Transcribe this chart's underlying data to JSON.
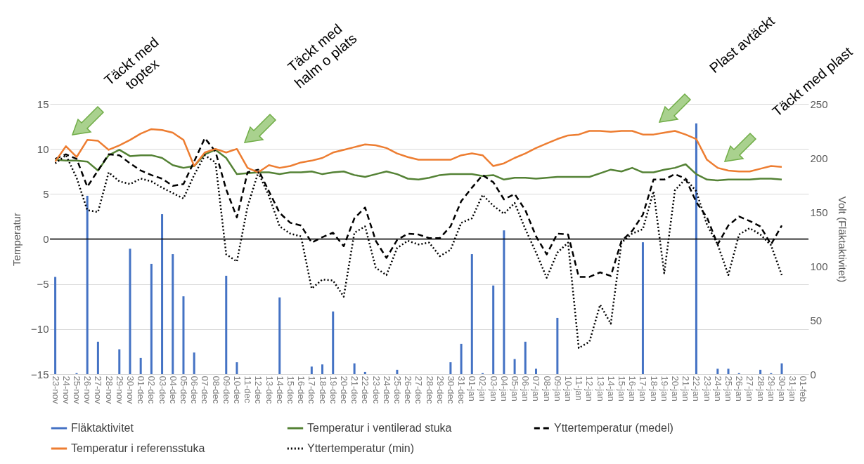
{
  "chart_data": {
    "type": "line",
    "categories": [
      "23-nov",
      "24-nov",
      "25-nov",
      "26-nov",
      "27-nov",
      "28-nov",
      "29-nov",
      "30-nov",
      "01-dec",
      "02-dec",
      "03-dec",
      "04-dec",
      "05-dec",
      "06-dec",
      "07-dec",
      "08-dec",
      "09-dec",
      "10-dec",
      "11-dec",
      "12-dec",
      "13-dec",
      "14-dec",
      "15-dec",
      "16-dec",
      "17-dec",
      "18-dec",
      "19-dec",
      "20-dec",
      "21-dec",
      "22-dec",
      "23-dec",
      "24-dec",
      "25-dec",
      "26-dec",
      "27-dec",
      "28-dec",
      "29-dec",
      "30-dec",
      "31-dec",
      "01-jan",
      "02-jan",
      "03-jan",
      "04-jan",
      "05-jan",
      "06-jan",
      "07-jan",
      "08-jan",
      "09-jan",
      "10-jan",
      "11-jan",
      "12-jan",
      "13-jan",
      "14-jan",
      "15-jan",
      "16-jan",
      "17-jan",
      "18-jan",
      "19-jan",
      "20-jan",
      "21-jan",
      "22-jan",
      "23-jan",
      "24-jan",
      "25-jan",
      "26-jan",
      "27-jan",
      "28-jan",
      "29-jan",
      "30-jan",
      "31-jan",
      "01-feb"
    ],
    "ylabel": "Temperatur",
    "y2label": "Volt (Fläktaktivitet)",
    "ylim": [
      -15,
      15
    ],
    "yticks": [
      -15,
      -10,
      -5,
      0,
      5,
      10,
      15
    ],
    "y2lim": [
      0,
      250
    ],
    "y2ticks": [
      0,
      50,
      100,
      150,
      200,
      250
    ],
    "grid": "y",
    "legend": "bottom",
    "ref_lines": [
      {
        "axis": "y",
        "value": 0,
        "color": "#000000"
      }
    ],
    "annotations": [
      "Täckt med\ntoptex",
      "Täckt med\nhalm o plats",
      "Plast avtäckt",
      "Täckt med plast"
    ],
    "series": [
      {
        "name": "Fläktaktivitet",
        "type": "bar",
        "axis": "y2",
        "color": "#4472c4",
        "values": [
          90,
          null,
          1,
          165,
          30,
          null,
          23,
          116,
          15,
          102,
          148,
          111,
          72,
          20,
          null,
          null,
          91,
          11,
          null,
          null,
          null,
          71,
          null,
          null,
          7,
          9,
          58,
          null,
          10,
          2,
          null,
          null,
          4,
          null,
          null,
          null,
          null,
          11,
          28,
          111,
          1,
          82,
          133,
          14,
          30,
          5,
          null,
          52,
          null,
          null,
          null,
          null,
          null,
          null,
          null,
          122,
          null,
          null,
          null,
          null,
          232,
          null,
          5,
          5,
          1,
          null,
          4,
          1,
          10,
          null,
          null
        ]
      },
      {
        "name": "Temperatur i ventilerad stuka",
        "color": "#548235",
        "line_style": "solid",
        "values": [
          8.8,
          8.7,
          8.7,
          8.6,
          7.6,
          9.3,
          9.9,
          9.2,
          9.3,
          9.3,
          9.0,
          8.2,
          7.9,
          8.1,
          9.4,
          9.9,
          9.0,
          7.2,
          7.3,
          7.4,
          7.4,
          7.2,
          7.4,
          7.4,
          7.5,
          7.2,
          7.4,
          7.5,
          7.1,
          6.9,
          7.2,
          7.5,
          7.2,
          6.7,
          6.6,
          6.8,
          7.1,
          7.2,
          7.2,
          7.2,
          7.0,
          7.1,
          6.6,
          6.8,
          6.8,
          6.7,
          6.8,
          6.9,
          6.9,
          6.9,
          6.9,
          7.3,
          7.7,
          7.5,
          7.9,
          7.4,
          7.4,
          7.7,
          7.9,
          8.3,
          7.2,
          6.6,
          6.5,
          6.6,
          6.6,
          6.6,
          6.7,
          6.7,
          6.6,
          null,
          null
        ]
      },
      {
        "name": "Yttertemperatur (medel)",
        "color": "#000000",
        "line_style": "dashed",
        "values": [
          8.9,
          9.4,
          8.9,
          5.8,
          7.6,
          9.4,
          9.3,
          8.4,
          7.6,
          7.1,
          6.7,
          5.9,
          6.1,
          8.6,
          11.2,
          9.7,
          5.5,
          2.4,
          7.4,
          7.7,
          5.3,
          2.9,
          1.8,
          1.5,
          -0.4,
          0.2,
          0.7,
          -0.8,
          2.3,
          3.5,
          -0.2,
          -2.1,
          -0.1,
          0.6,
          0.5,
          0.1,
          0.1,
          1.4,
          4.2,
          5.7,
          7.1,
          6.3,
          4.4,
          5.0,
          3.2,
          0.3,
          -1.7,
          0.6,
          0.5,
          -4.2,
          -4.2,
          -3.7,
          -4.1,
          -0.2,
          0.9,
          2.7,
          6.6,
          6.6,
          7.2,
          6.7,
          4.1,
          2.4,
          -0.6,
          1.5,
          2.5,
          2.0,
          1.4,
          -0.6,
          1.5,
          null,
          null
        ]
      },
      {
        "name": "Temperatur i referensstuka",
        "color": "#ed7d31",
        "line_style": "solid",
        "values": [
          8.6,
          10.3,
          9.1,
          11.0,
          10.9,
          9.9,
          10.4,
          11.0,
          11.7,
          12.2,
          12.1,
          11.8,
          11.0,
          8.1,
          9.6,
          10.0,
          9.6,
          10.0,
          7.9,
          7.4,
          8.2,
          7.9,
          8.1,
          8.5,
          8.7,
          9.0,
          9.6,
          9.9,
          10.2,
          10.5,
          10.4,
          10.1,
          9.5,
          9.1,
          8.8,
          8.8,
          8.8,
          8.8,
          9.3,
          9.5,
          9.3,
          8.1,
          8.4,
          9.0,
          9.5,
          10.1,
          10.6,
          11.1,
          11.5,
          11.6,
          12.0,
          12.0,
          11.9,
          12.0,
          12.0,
          11.6,
          11.6,
          11.8,
          12.0,
          11.6,
          11.1,
          8.8,
          7.9,
          7.6,
          7.5,
          7.5,
          7.8,
          8.1,
          8.0,
          null,
          null
        ]
      },
      {
        "name": "Yttertemperatur (min)",
        "color": "#000000",
        "line_style": "dotted",
        "values": [
          8.4,
          9.3,
          6.8,
          3.2,
          3.0,
          7.4,
          6.4,
          6.1,
          6.7,
          6.4,
          5.7,
          5.1,
          4.5,
          7.1,
          9.3,
          8.5,
          -1.7,
          -2.5,
          3.6,
          7.4,
          4.8,
          1.4,
          0.6,
          0.3,
          -5.5,
          -4.5,
          -4.6,
          -6.4,
          0.7,
          1.4,
          -3.2,
          -4.0,
          -1.0,
          -0.2,
          -0.6,
          -0.4,
          -1.9,
          -1.2,
          1.8,
          2.3,
          4.9,
          3.7,
          2.8,
          4.0,
          1.1,
          -1.5,
          -4.3,
          -1.5,
          -0.4,
          -12.1,
          -11.4,
          -7.3,
          -9.4,
          -0.4,
          0.6,
          1.1,
          5.3,
          -3.8,
          5.4,
          6.7,
          5.3,
          1.6,
          -0.6,
          -4.0,
          0.5,
          1.2,
          0.5,
          -0.7,
          -4.0,
          null,
          null
        ]
      }
    ]
  }
}
